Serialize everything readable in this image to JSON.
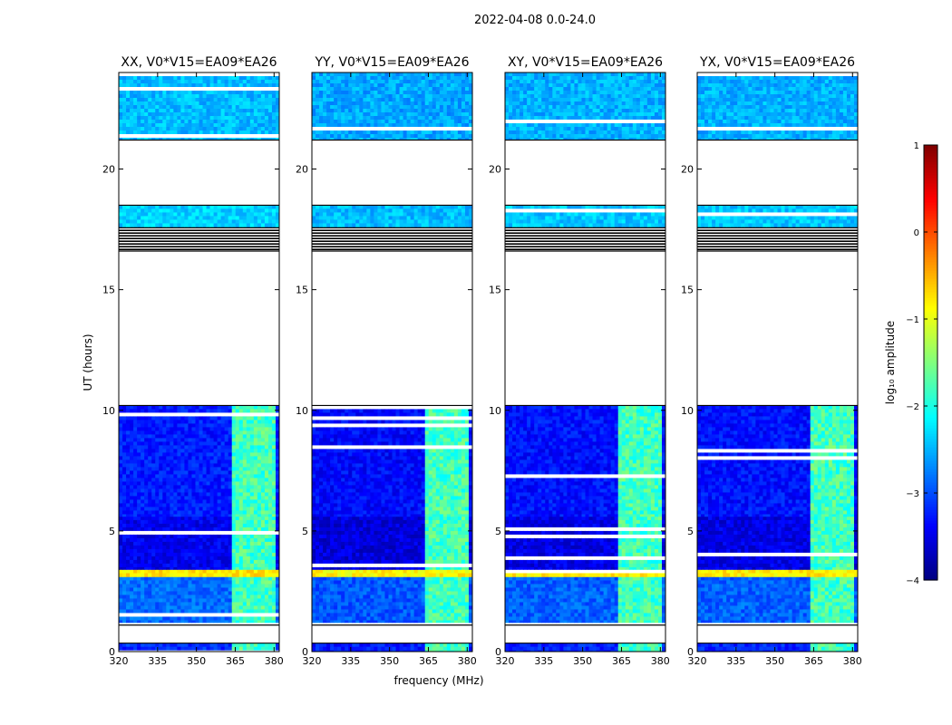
{
  "figure": {
    "suptitle": "2022-04-08 0.0-24.0",
    "ylabel": "UT (hours)",
    "xlabel": "frequency (MHz)",
    "colorbar_label": "log₁₀ amplitude",
    "colorbar_ticks": [
      -4,
      -3,
      -2,
      -1,
      0,
      1
    ],
    "colorbar_tick_labels": [
      "−4",
      "−3",
      "−2",
      "−1",
      "0",
      "1"
    ],
    "colormap": [
      "#00007f",
      "#0000ff",
      "#007fff",
      "#00ffff",
      "#7fff7f",
      "#ffff00",
      "#ff7f00",
      "#ff0000",
      "#7f0000"
    ]
  },
  "chart_data": {
    "type": "heatmap",
    "x_axis": {
      "label": "frequency (MHz)",
      "range": [
        320,
        382
      ],
      "ticks": [
        320,
        335,
        350,
        365,
        380
      ],
      "tick_labels": [
        "320",
        "335",
        "350",
        "365",
        "380"
      ]
    },
    "y_axis": {
      "label": "UT (hours)",
      "range": [
        0,
        24
      ],
      "ticks": [
        0,
        5,
        10,
        15,
        20
      ],
      "tick_labels": [
        "0",
        "5",
        "10",
        "15",
        "20"
      ]
    },
    "color_axis": {
      "label": "log10 amplitude",
      "range": [
        -4,
        1
      ]
    },
    "panels": [
      {
        "title": "XX, V0*V15=EA09*EA26",
        "pol": "XX",
        "base_level": -3.2
      },
      {
        "title": "YY, V0*V15=EA09*EA26",
        "pol": "YY",
        "base_level": -3.3
      },
      {
        "title": "XY, V0*V15=EA09*EA26",
        "pol": "XY",
        "base_level": -3.25
      },
      {
        "title": "YX, V0*V15=EA09*EA26",
        "pol": "YX",
        "base_level": -3.25
      }
    ],
    "time_blocks": [
      {
        "start": 0.0,
        "end": 0.35,
        "level": -3.2,
        "note": "low amplitude strip"
      },
      {
        "start": 1.2,
        "end": 3.1,
        "level": -2.9
      },
      {
        "start": 3.1,
        "end": 3.4,
        "level": -0.8,
        "note": "RFI band 363-380 MHz"
      },
      {
        "start": 3.4,
        "end": 5.6,
        "level": -3.5
      },
      {
        "start": 5.6,
        "end": 10.2,
        "level": -3.3
      },
      {
        "start": 16.6,
        "end": 17.6,
        "level": -4.0,
        "note": "flagged rows"
      },
      {
        "start": 17.6,
        "end": 18.5,
        "level": -2.4
      },
      {
        "start": 21.2,
        "end": 24.0,
        "level": -2.5
      }
    ],
    "empty_ranges": [
      [
        0.35,
        1.1
      ],
      [
        10.2,
        16.6
      ],
      [
        18.5,
        21.2
      ]
    ],
    "rfi_band_mhz": [
      363,
      380
    ],
    "rfi_level": -1.8
  }
}
